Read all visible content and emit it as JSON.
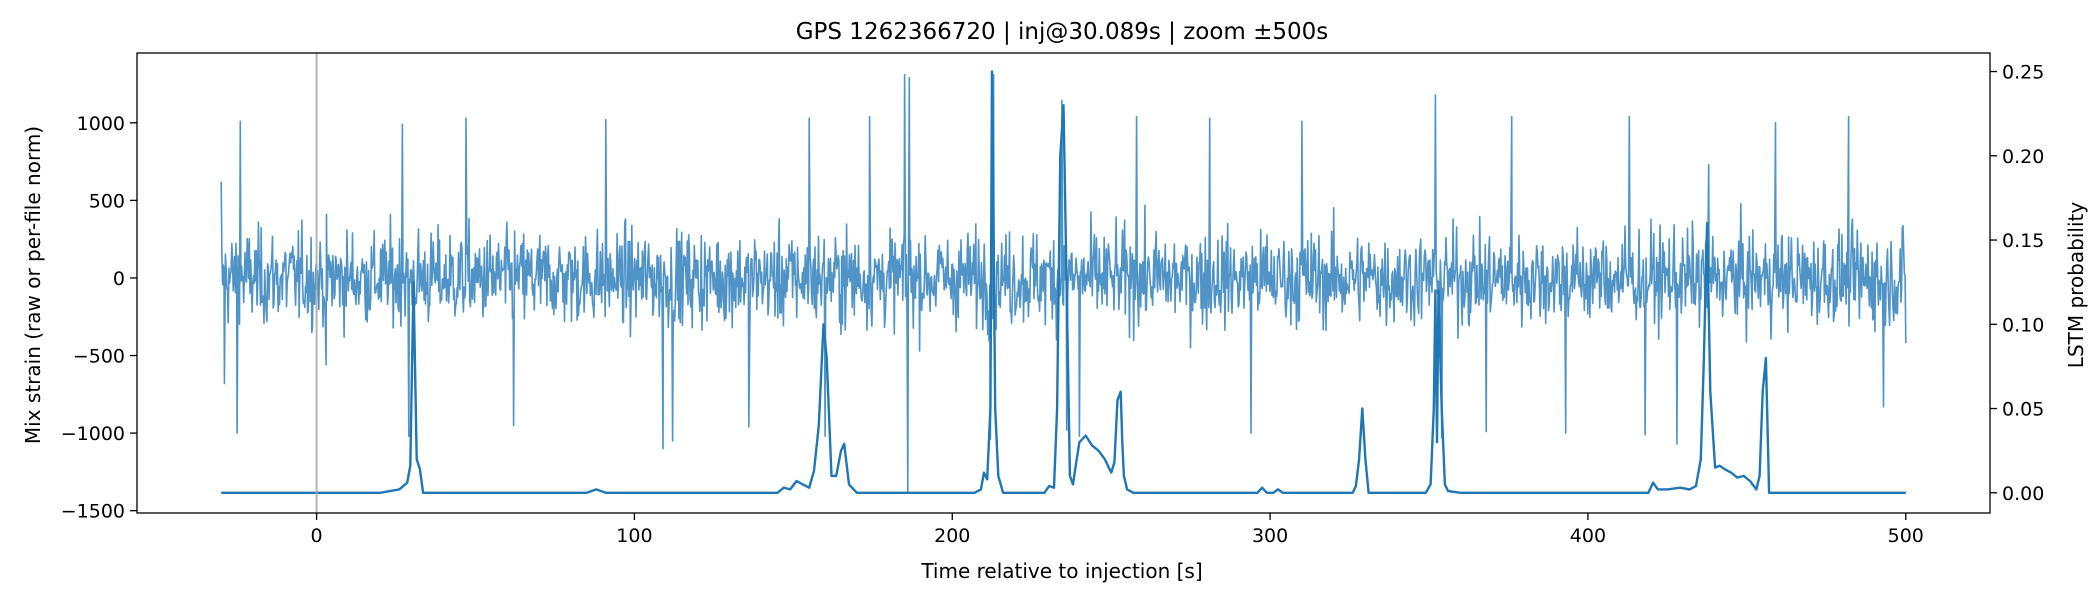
{
  "chart_data": {
    "type": "line",
    "title": "GPS 1262366720 | inj@30.089s | zoom ±500s",
    "xlabel": "Time relative to injection [s]",
    "ylabel_left": "Mix strain (raw or per-file norm)",
    "ylabel_right": "LSTM probability",
    "xlim": [
      -56.5,
      526.5
    ],
    "ylim_left": [
      -1515,
      1450
    ],
    "ylim_right": [
      -0.012,
      0.261
    ],
    "x_ticks": [
      0,
      100,
      200,
      300,
      400,
      500
    ],
    "y_left_ticks": [
      -1500,
      -1000,
      -500,
      0,
      500,
      1000
    ],
    "y_right_ticks": [
      0.0,
      0.05,
      0.1,
      0.15,
      0.2,
      0.25
    ],
    "x_tick_labels": [
      "0",
      "100",
      "200",
      "300",
      "400",
      "500"
    ],
    "y_left_tick_labels": [
      "−1500",
      "−1000",
      "−500",
      "0",
      "500",
      "1000"
    ],
    "y_right_tick_labels": [
      "0.00",
      "0.05",
      "0.10",
      "0.15",
      "0.20",
      "0.25"
    ],
    "vline_x": 0,
    "grid": false,
    "colors": {
      "strain": "#4f93c7",
      "probability": "#1f77b4",
      "vline": "#a9a9a9"
    },
    "series": [
      {
        "axis": "left",
        "x_range": [
          -30,
          500
        ],
        "typical_amplitude": [
          -500,
          500
        ],
        "extremes": [
          {
            "x": -30,
            "y": 620
          },
          {
            "x": -29,
            "y": -680
          },
          {
            "x": -25,
            "y": -1000
          },
          {
            "x": -24,
            "y": 1010
          },
          {
            "x": 3,
            "y": -560
          },
          {
            "x": 27,
            "y": 990
          },
          {
            "x": 29,
            "y": -1020
          },
          {
            "x": 47,
            "y": 1030
          },
          {
            "x": 62,
            "y": -950
          },
          {
            "x": 91,
            "y": 1020
          },
          {
            "x": 109,
            "y": -1100
          },
          {
            "x": 112,
            "y": -1050
          },
          {
            "x": 136,
            "y": -960
          },
          {
            "x": 155,
            "y": 1030
          },
          {
            "x": 160,
            "y": -1020
          },
          {
            "x": 174,
            "y": 1040
          },
          {
            "x": 185,
            "y": 1310
          },
          {
            "x": 186,
            "y": -1380
          },
          {
            "x": 186.5,
            "y": 1290
          },
          {
            "x": 213,
            "y": 1310
          },
          {
            "x": 212,
            "y": -1040
          },
          {
            "x": 234.5,
            "y": 1145
          },
          {
            "x": 236,
            "y": -980
          },
          {
            "x": 240,
            "y": -1020
          },
          {
            "x": 258,
            "y": 1040
          },
          {
            "x": 281,
            "y": 1030
          },
          {
            "x": 294,
            "y": -1000
          },
          {
            "x": 310,
            "y": 1010
          },
          {
            "x": 352,
            "y": 1180
          },
          {
            "x": 354,
            "y": -1030
          },
          {
            "x": 368,
            "y": -990
          },
          {
            "x": 376,
            "y": 1040
          },
          {
            "x": 393,
            "y": -1000
          },
          {
            "x": 413,
            "y": 1040
          },
          {
            "x": 418,
            "y": -1010
          },
          {
            "x": 428,
            "y": -1070
          },
          {
            "x": 438,
            "y": 730
          },
          {
            "x": 459,
            "y": 1000
          },
          {
            "x": 482,
            "y": 1040
          },
          {
            "x": 493,
            "y": -830
          },
          {
            "x": 500,
            "y": -420
          }
        ]
      },
      {
        "axis": "right",
        "baseline": 0.0,
        "x": [
          -30,
          20,
          26,
          28.5,
          29.5,
          30.5,
          31.5,
          32.5,
          33.5,
          35,
          85,
          88,
          91,
          145,
          147,
          149,
          151,
          153,
          155,
          156.5,
          158,
          159.5,
          160.5,
          162,
          163.5,
          165,
          166,
          167.5,
          170,
          207,
          209,
          210,
          211,
          212,
          212.5,
          213.5,
          214.5,
          216,
          229,
          230.5,
          232,
          233,
          234,
          235,
          236,
          237,
          238,
          239,
          240,
          241,
          242,
          244,
          246,
          248,
          250,
          251,
          252,
          253,
          253.5,
          254,
          255,
          257,
          296,
          297.5,
          299,
          301,
          302.5,
          304,
          326,
          327,
          328,
          329,
          330,
          331,
          349,
          350.5,
          351.5,
          352,
          352.5,
          353,
          354,
          355,
          356,
          360,
          419,
          420.5,
          422,
          425,
          429,
          432,
          434,
          435.5,
          436.5,
          437.5,
          438.5,
          440,
          441.5,
          443,
          445,
          447,
          449,
          451,
          453,
          454,
          455,
          456,
          457,
          500
        ],
        "values": [
          0.0,
          0.0,
          0.002,
          0.006,
          0.016,
          0.125,
          0.02,
          0.014,
          0.0,
          0.0,
          0.0,
          0.002,
          0.0,
          0.0,
          0.003,
          0.002,
          0.007,
          0.005,
          0.003,
          0.013,
          0.04,
          0.1,
          0.08,
          0.01,
          0.01,
          0.025,
          0.029,
          0.005,
          0.0,
          0.0,
          0.002,
          0.012,
          0.008,
          0.05,
          0.25,
          0.05,
          0.01,
          0.0,
          0.0,
          0.004,
          0.003,
          0.05,
          0.2,
          0.23,
          0.12,
          0.01,
          0.005,
          0.018,
          0.03,
          0.032,
          0.034,
          0.028,
          0.025,
          0.02,
          0.012,
          0.018,
          0.055,
          0.06,
          0.03,
          0.01,
          0.002,
          0.0,
          0.0,
          0.003,
          0.0,
          0.0,
          0.002,
          0.0,
          0.0,
          0.004,
          0.02,
          0.05,
          0.02,
          0.0,
          0.0,
          0.005,
          0.05,
          0.12,
          0.03,
          0.12,
          0.05,
          0.005,
          0.001,
          0.0,
          0.0,
          0.006,
          0.002,
          0.002,
          0.003,
          0.002,
          0.004,
          0.02,
          0.08,
          0.16,
          0.06,
          0.015,
          0.016,
          0.014,
          0.012,
          0.009,
          0.01,
          0.007,
          0.002,
          0.01,
          0.06,
          0.08,
          0.0,
          0.0
        ]
      }
    ]
  }
}
